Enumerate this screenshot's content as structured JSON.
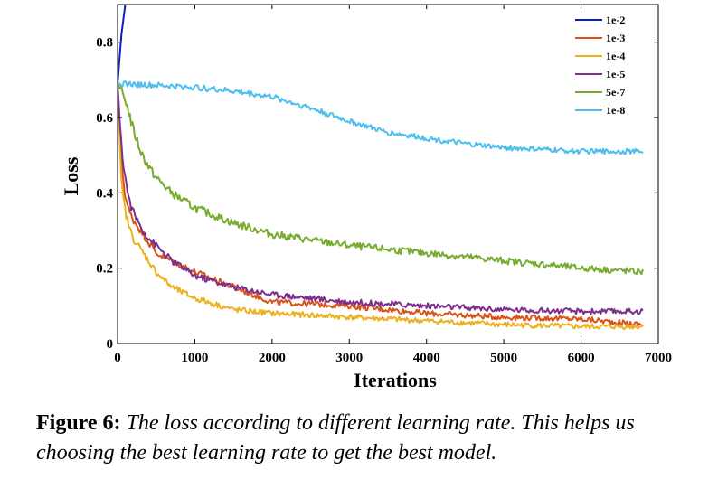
{
  "chart_data": {
    "type": "line",
    "xlabel": "Iterations",
    "ylabel": "Loss",
    "xlim": [
      0,
      7000
    ],
    "ylim": [
      0,
      0.9
    ],
    "xticks": [
      0,
      1000,
      2000,
      3000,
      4000,
      5000,
      6000,
      7000
    ],
    "yticks": [
      0,
      0.2,
      0.4,
      0.6,
      0.8
    ],
    "xtick_labels": [
      "0",
      "1000",
      "2000",
      "3000",
      "4000",
      "5000",
      "6000",
      "7000"
    ],
    "ytick_labels": [
      "0",
      "0.2",
      "0.4",
      "0.6",
      "0.8"
    ],
    "grid": false,
    "legend_position": "top-right",
    "series": [
      {
        "name": "1e-2",
        "color": "#0a1fbf",
        "x": [
          0,
          50,
          100
        ],
        "y": [
          0.69,
          0.82,
          0.9
        ]
      },
      {
        "name": "1e-3",
        "color": "#d95319",
        "x": [
          0,
          50,
          100,
          150,
          200,
          300,
          400,
          500,
          700,
          1000,
          1500,
          2000,
          3000,
          4000,
          5000,
          6000,
          6800
        ],
        "y": [
          0.69,
          0.48,
          0.39,
          0.35,
          0.33,
          0.3,
          0.27,
          0.24,
          0.22,
          0.19,
          0.15,
          0.11,
          0.1,
          0.08,
          0.07,
          0.065,
          0.05
        ]
      },
      {
        "name": "1e-4",
        "color": "#edb120",
        "x": [
          0,
          50,
          100,
          150,
          200,
          300,
          400,
          500,
          700,
          1000,
          1500,
          2000,
          3000,
          4000,
          5000,
          6000,
          6800
        ],
        "y": [
          0.69,
          0.42,
          0.35,
          0.31,
          0.28,
          0.25,
          0.22,
          0.19,
          0.15,
          0.12,
          0.09,
          0.08,
          0.07,
          0.06,
          0.05,
          0.045,
          0.045
        ]
      },
      {
        "name": "1e-5",
        "color": "#7e2f8e",
        "x": [
          0,
          50,
          100,
          150,
          200,
          300,
          400,
          500,
          700,
          1000,
          1500,
          2000,
          3000,
          4000,
          5000,
          6000,
          6800
        ],
        "y": [
          0.69,
          0.52,
          0.44,
          0.38,
          0.35,
          0.31,
          0.28,
          0.26,
          0.22,
          0.18,
          0.15,
          0.13,
          0.11,
          0.1,
          0.09,
          0.085,
          0.085
        ]
      },
      {
        "name": "5e-7",
        "color": "#77ac30",
        "x": [
          0,
          100,
          200,
          300,
          400,
          500,
          700,
          1000,
          1500,
          2000,
          3000,
          4000,
          5000,
          6000,
          6800
        ],
        "y": [
          0.69,
          0.65,
          0.57,
          0.51,
          0.47,
          0.44,
          0.4,
          0.36,
          0.32,
          0.29,
          0.26,
          0.24,
          0.22,
          0.2,
          0.19
        ]
      },
      {
        "name": "1e-8",
        "color": "#4dbeee",
        "x": [
          0,
          500,
          1000,
          1500,
          2000,
          2500,
          3000,
          3500,
          4000,
          4500,
          5000,
          5500,
          6000,
          6500,
          6800
        ],
        "y": [
          0.69,
          0.685,
          0.68,
          0.67,
          0.655,
          0.625,
          0.59,
          0.56,
          0.545,
          0.53,
          0.52,
          0.515,
          0.51,
          0.51,
          0.51
        ]
      }
    ]
  },
  "caption": {
    "label": "Figure 6:",
    "text": " The loss according to different learning rate. This helps us choosing the best learning rate to get the best model."
  }
}
